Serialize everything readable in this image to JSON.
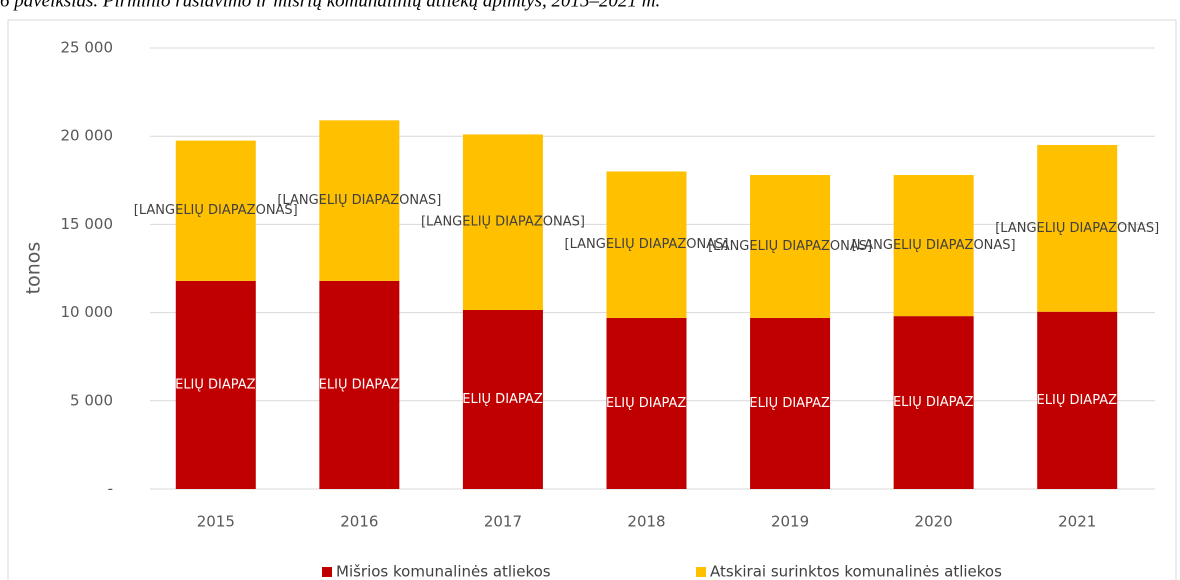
{
  "caption": "6 paveikslas. Pirminio rūšiavimo ir mišrių komunalinių atliekų apimtys, 2015–2021 m.",
  "chart_data": {
    "type": "stacked_bar",
    "ylabel": "tonos",
    "categories": [
      "2015",
      "2016",
      "2017",
      "2018",
      "2019",
      "2020",
      "2021"
    ],
    "series": [
      {
        "name": "Mišrios komunalinės atliekos",
        "color": "#c00000",
        "values": [
          11800,
          11800,
          10150,
          9700,
          9700,
          9800,
          10050
        ],
        "value_labels": [
          "[LANGELIŲ DIAPAZONAS]",
          "[LANGELIŲ DIAPAZONAS]",
          "[LANGELIŲ DIAPAZONAS]",
          "[LANGELIŲ DIAPAZONAS]",
          "[LANGELIŲ DIAPAZONAS]",
          "[LANGELIŲ DIAPAZONAS]",
          "[LANGELIŲ DIAPAZONAS]"
        ]
      },
      {
        "name": "Atskirai surinktos komunalinės atliekos",
        "color": "#ffc000",
        "values": [
          7950,
          9100,
          9950,
          8300,
          8100,
          8000,
          9450
        ],
        "value_labels": [
          "[LANGELIŲ DIAPAZONAS]",
          "[LANGELIŲ DIAPAZONAS]",
          "[LANGELIŲ DIAPAZONAS]",
          "[LANGELIŲ DIAPAZONAS]",
          "[LANGELIŲ DIAPAZONAS]",
          "[LANGELIŲ DIAPAZONAS]",
          "[LANGELIŲ DIAPAZONAS]"
        ]
      }
    ],
    "ylim": [
      0,
      25000
    ],
    "yticks": [
      {
        "value": 0,
        "label": "-"
      },
      {
        "value": 5000,
        "label": "5 000"
      },
      {
        "value": 10000,
        "label": "10 000"
      },
      {
        "value": 15000,
        "label": "15 000"
      },
      {
        "value": 20000,
        "label": "20 000"
      },
      {
        "value": 25000,
        "label": "25 000"
      }
    ],
    "grid": true,
    "legend": "bottom"
  }
}
